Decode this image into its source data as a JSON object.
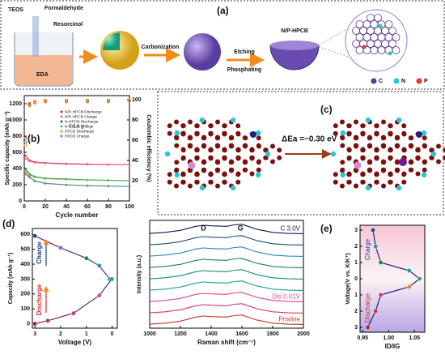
{
  "figure_labels": {
    "a": "(a)",
    "b": "(b)",
    "c": "(c)",
    "d": "(d)",
    "e": "(e)"
  },
  "schematic": {
    "reagents": [
      "TEOS",
      "Formaldehyde",
      "Resorcinol"
    ],
    "solvent": "EDA",
    "steps": [
      "Carbonization",
      "Etching",
      "Phosphating"
    ],
    "product": "N/P-HPCB",
    "atoms": [
      {
        "symbol": "C",
        "color": "#5b3a8c"
      },
      {
        "symbol": "N",
        "color": "#29c5d6"
      },
      {
        "symbol": "P",
        "color": "#e53935"
      }
    ]
  },
  "adsorption": {
    "energy": "ΔEa =−0.30 eV"
  },
  "chart_data": [
    {
      "type": "line",
      "x_label": "Cycle number",
      "y_label": "Specific capacity (mAh g⁻¹)",
      "y2_label": "Coulombic efficiency (%)",
      "annotation": "0.1 A g⁻¹",
      "x": [
        1,
        5,
        10,
        20,
        40,
        60,
        80,
        100
      ],
      "xlim": [
        0,
        100
      ],
      "xticks": [
        0,
        20,
        40,
        60,
        80,
        100
      ],
      "ylim": [
        0,
        1300
      ],
      "yticks": [
        0,
        200,
        400,
        600,
        800,
        1000,
        1200
      ],
      "y2lim": [
        0,
        104
      ],
      "y2ticks": [
        20,
        40,
        60,
        80,
        100
      ],
      "series": [
        {
          "name": "N/P-HPCB Discharge",
          "color": "#e41a1c",
          "values": [
            560,
            500,
            480,
            470,
            460,
            455,
            450,
            450
          ]
        },
        {
          "name": "N/P-HPCB Charge",
          "color": "#f06292",
          "values": [
            520,
            490,
            475,
            465,
            455,
            450,
            448,
            447
          ]
        },
        {
          "name": "N-HPCB Discharge",
          "color": "#1b7837",
          "values": [
            400,
            330,
            300,
            280,
            270,
            260,
            255,
            250
          ]
        },
        {
          "name": "N-HPCB Charge",
          "color": "#66bd63",
          "values": [
            380,
            320,
            295,
            275,
            265,
            258,
            252,
            248
          ]
        },
        {
          "name": "HPCB Discharge",
          "color": "#ff8c00",
          "values": [
            350,
            300,
            250,
            220,
            200,
            190,
            185,
            180
          ]
        },
        {
          "name": "HPCB Charge",
          "color": "#4292c6",
          "values": [
            330,
            290,
            245,
            215,
            198,
            188,
            183,
            178
          ]
        }
      ],
      "efficiency": [
        {
          "color": "#e41a1c",
          "axis": "y2",
          "values": [
            62,
            96,
            98,
            99,
            99,
            99,
            99,
            99
          ]
        },
        {
          "color": "#1b7837",
          "axis": "y2",
          "values": [
            58,
            95,
            97,
            98,
            98,
            99,
            99,
            99
          ]
        },
        {
          "color": "#ff8c00",
          "axis": "y2",
          "values": [
            55,
            94,
            97,
            98,
            98,
            98,
            98,
            99
          ]
        }
      ]
    },
    {
      "type": "line",
      "x_label": "Voltage (V)",
      "y_label": "Capacity (mAh g⁻¹)",
      "line_color": "#5b2c6f",
      "xlim": [
        3.1,
        -0.2
      ],
      "xticks": [
        3,
        2,
        1,
        0
      ],
      "ylim": [
        -30,
        640
      ],
      "yticks": [
        0,
        100,
        200,
        300,
        400,
        500,
        600
      ],
      "series": [
        {
          "name": "Charge",
          "color": "#1a3c8f",
          "x": [
            0.1,
            0.5,
            1,
            2,
            3
          ],
          "values": [
            300,
            390,
            440,
            510,
            590
          ],
          "marker_colors": [
            "#17a589",
            "#2e86c1",
            "#1e8449",
            "#7b68ee",
            "#1f4e79"
          ]
        },
        {
          "name": "Discharge",
          "color": "#d32f2f",
          "x": [
            0.01,
            0.5,
            1.5,
            2.5,
            3
          ],
          "values": [
            300,
            190,
            70,
            20,
            0
          ],
          "marker_colors": [
            "#17a589",
            "#e040a0",
            "#d6336c",
            "#c0392b",
            "#b22222"
          ]
        }
      ]
    },
    {
      "type": "line",
      "x_label": "Raman shift (cm⁻¹)",
      "y_label": "Intensity (a.u.)",
      "xlim": [
        1000,
        2000
      ],
      "xticks": [
        1000,
        1200,
        1400,
        1600,
        1800,
        2000
      ],
      "ylim": [
        -0.3,
        9.2
      ],
      "annotations": [
        {
          "text": "D",
          "x": 1350
        },
        {
          "text": "G",
          "x": 1590
        }
      ],
      "x": [
        1000,
        1100,
        1200,
        1300,
        1350,
        1400,
        1500,
        1550,
        1600,
        1700,
        1800,
        1900,
        2000
      ],
      "series": [
        {
          "name": "Pristine",
          "color": "#c0392b",
          "values": [
            0.05,
            0.14,
            0.32,
            0.68,
            0.77,
            0.72,
            0.68,
            0.81,
            0.86,
            0.41,
            0.14,
            0.05,
            0.03
          ]
        },
        {
          "color": "#d6336c",
          "values": [
            1.05,
            1.14,
            1.32,
            1.68,
            1.77,
            1.72,
            1.68,
            1.81,
            1.86,
            1.41,
            1.14,
            1.05,
            1.03
          ]
        },
        {
          "name": "Dis 0.01V",
          "color": "#e040a0",
          "values": [
            2.05,
            2.14,
            2.32,
            2.68,
            2.77,
            2.72,
            2.68,
            2.81,
            2.86,
            2.41,
            2.14,
            2.05,
            2.03
          ]
        },
        {
          "color": "#17a589",
          "values": [
            3.05,
            3.14,
            3.32,
            3.68,
            3.77,
            3.72,
            3.68,
            3.81,
            3.86,
            3.41,
            3.14,
            3.05,
            3.03
          ]
        },
        {
          "color": "#138d75",
          "values": [
            4.05,
            4.14,
            4.32,
            4.68,
            4.77,
            4.72,
            4.68,
            4.81,
            4.86,
            4.41,
            4.14,
            4.05,
            4.03
          ]
        },
        {
          "color": "#1e8449",
          "values": [
            5.05,
            5.14,
            5.32,
            5.68,
            5.77,
            5.72,
            5.68,
            5.81,
            5.86,
            5.41,
            5.14,
            5.05,
            5.03
          ]
        },
        {
          "color": "#2e86c1",
          "values": [
            6.05,
            6.14,
            6.32,
            6.68,
            6.77,
            6.72,
            6.68,
            6.81,
            6.86,
            6.41,
            6.14,
            6.05,
            6.03
          ]
        },
        {
          "color": "#1f4e79",
          "values": [
            7.05,
            7.14,
            7.32,
            7.68,
            7.77,
            7.72,
            7.68,
            7.81,
            7.86,
            7.41,
            7.14,
            7.05,
            7.03
          ]
        },
        {
          "name": "C 3.0V",
          "color": "#0b1a4f",
          "values": [
            8.05,
            8.14,
            8.32,
            8.68,
            8.77,
            8.72,
            8.68,
            8.81,
            8.86,
            8.41,
            8.14,
            8.05,
            8.03
          ]
        }
      ]
    },
    {
      "type": "line",
      "x_label": "ID/IG",
      "y_label": "Voltage(V vs. K/K⁺)",
      "line_color": "#1a237e",
      "regions": [
        "Charge",
        "Discharge"
      ],
      "xlim": [
        0.945,
        1.07
      ],
      "xticks": [
        0.95,
        {
          "value": 1,
          "label": "1.00"
        },
        1.05
      ],
      "ylim": [
        -3.3,
        3.3
      ],
      "yticks": [
        {
          "value": -3,
          "label": "3"
        },
        {
          "value": -2,
          "label": "2"
        },
        {
          "value": -1,
          "label": "1"
        },
        0,
        1,
        2,
        3
      ],
      "x": [
        0.97,
        0.975,
        0.985,
        1.04,
        1.06,
        1.04,
        0.985,
        0.975,
        0.96
      ],
      "values": [
        3,
        2,
        1,
        0.5,
        0,
        -0.5,
        -1,
        -2,
        -3
      ],
      "point_colors": [
        "#1f4e79",
        "#2e86c1",
        "#1e8449",
        "#17a589",
        "#27ae60",
        "#e67e22",
        "#d6336c",
        "#c0392b",
        "#b22222"
      ]
    }
  ]
}
